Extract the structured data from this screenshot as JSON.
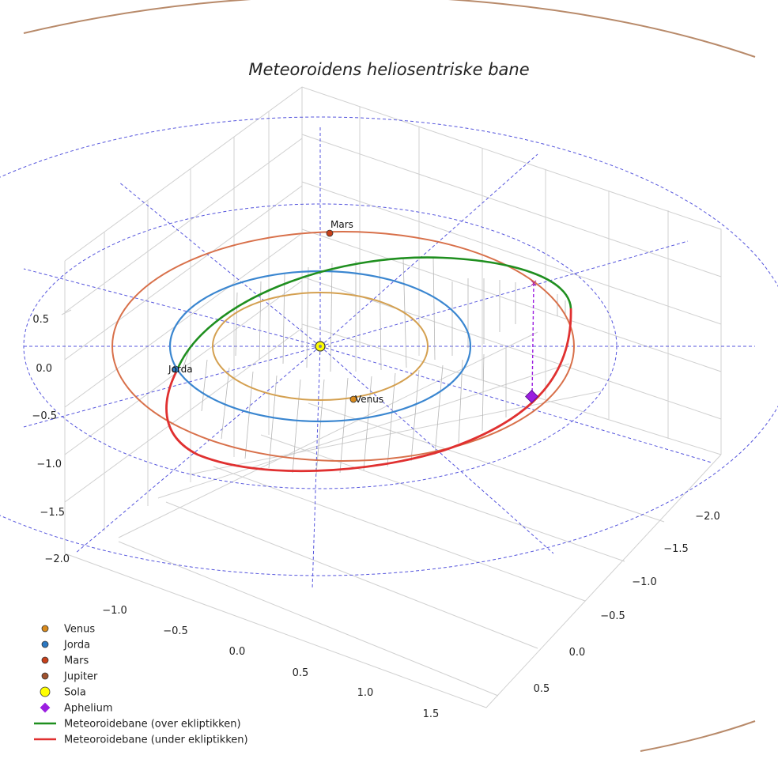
{
  "chart_data": {
    "type": "3d-orbit",
    "title": "Meteoroidens heliosentriske bane",
    "axes": {
      "x_ticks": [
        "−1.0",
        "−0.5",
        "0.0",
        "0.5",
        "1.0",
        "1.5"
      ],
      "y_ticks": [
        "−2.0",
        "−1.5",
        "−1.0",
        "−0.5",
        "0.0",
        "0.5"
      ],
      "z_ticks": [
        "0.5",
        "0.0",
        "−0.5",
        "−1.0",
        "−1.5",
        "−2.0"
      ]
    },
    "bodies": [
      {
        "name": "Mars",
        "color": "#c8401a"
      },
      {
        "name": "Jorda",
        "color": "#2b78c2"
      },
      {
        "name": "Venus",
        "color": "#d88a1c"
      }
    ],
    "orbits": [
      {
        "name": "Venus",
        "color": "#d4a050"
      },
      {
        "name": "Jorda",
        "color": "#3a86d0"
      },
      {
        "name": "Mars",
        "color": "#d8704a"
      },
      {
        "name": "Jupiter",
        "color": "#b88a6a"
      }
    ],
    "legend": [
      {
        "label": "Venus",
        "marker": "circle",
        "color": "#d88a1c"
      },
      {
        "label": "Jorda",
        "marker": "circle",
        "color": "#2b78c2"
      },
      {
        "label": "Mars",
        "marker": "circle",
        "color": "#c8401a"
      },
      {
        "label": "Jupiter",
        "marker": "circle",
        "color": "#a0522d"
      },
      {
        "label": "Sola",
        "marker": "circle-large",
        "color": "#ffff00"
      },
      {
        "label": "Aphelium",
        "marker": "diamond",
        "color": "#9b1ee0"
      },
      {
        "label": "Meteoroidebane (over ekliptikken)",
        "marker": "line",
        "color": "#1f8f1f"
      },
      {
        "label": "Meteoroidebane (under ekliptikken)",
        "marker": "line",
        "color": "#e03030"
      }
    ]
  }
}
